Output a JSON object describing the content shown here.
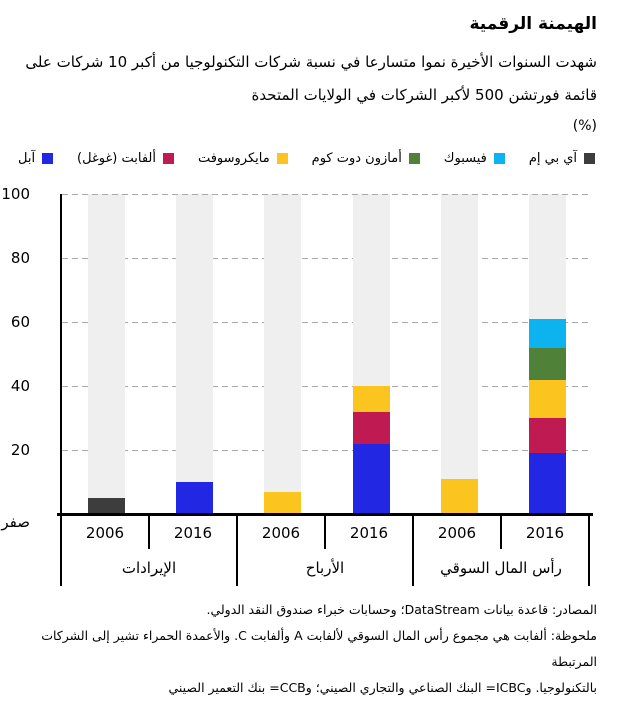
{
  "header": {
    "title": "الهيمنة الرقمية",
    "subtitle_line1": "شهدت السنوات الأخيرة نموا متسارعا في نسبة شركات التكنولوجيا من أكبر 10 شركات على",
    "subtitle_line2": "قائمة فورتشن 500 لأكبر الشركات في الولايات المتحدة",
    "unit_label": "(%)"
  },
  "legend": [
    {
      "key": "ibm",
      "label": "آي بي إم",
      "color": "#3d3d3d"
    },
    {
      "key": "facebook",
      "label": "فيسبوك",
      "color": "#0db3ef"
    },
    {
      "key": "amazon",
      "label": "أمازون دوت كوم",
      "color": "#4f8138"
    },
    {
      "key": "microsoft",
      "label": "مايكروسوفت",
      "color": "#fcc41f"
    },
    {
      "key": "alphabet-google",
      "label": "ألفابت (غوغل)",
      "color": "#c01a52"
    },
    {
      "key": "apple",
      "label": "آبل",
      "color": "#2127e3"
    }
  ],
  "chart_data": {
    "type": "bar",
    "stacked": true,
    "ylim": [
      0,
      100
    ],
    "grid": "dashed-horizontal",
    "background_columns_color": "#efefef",
    "yticks": [
      {
        "label": "100",
        "value": 100
      },
      {
        "label": "80",
        "value": 80
      },
      {
        "label": "60",
        "value": 60
      },
      {
        "label": "40",
        "value": 40
      },
      {
        "label": "20",
        "value": 20
      },
      {
        "label": "صفر",
        "value": 0
      }
    ],
    "groups": [
      {
        "label": "الإيرادات",
        "bars": [
          {
            "year": "2006",
            "segments": [
              {
                "company": "ibm",
                "value": 5
              }
            ]
          },
          {
            "year": "2016",
            "segments": [
              {
                "company": "apple",
                "value": 10
              }
            ]
          }
        ]
      },
      {
        "label": "الأرباح",
        "bars": [
          {
            "year": "2006",
            "segments": [
              {
                "company": "microsoft",
                "value": 7
              }
            ]
          },
          {
            "year": "2016",
            "segments": [
              {
                "company": "apple",
                "value": 22
              },
              {
                "company": "alphabet-google",
                "value": 10
              },
              {
                "company": "microsoft",
                "value": 8
              }
            ]
          }
        ]
      },
      {
        "label": "رأس المال السوقي",
        "bars": [
          {
            "year": "2006",
            "segments": [
              {
                "company": "microsoft",
                "value": 11
              }
            ]
          },
          {
            "year": "2016",
            "segments": [
              {
                "company": "apple",
                "value": 19
              },
              {
                "company": "alphabet-google",
                "value": 11
              },
              {
                "company": "microsoft",
                "value": 12
              },
              {
                "company": "amazon",
                "value": 10
              },
              {
                "company": "facebook",
                "value": 9
              }
            ]
          }
        ]
      }
    ]
  },
  "footnotes": {
    "line1": "المصادر: قاعدة بيانات DataStream؛ وحسابات خبراء صندوق النقد الدولي.",
    "line2": "ملحوظة: ألفابت هي مجموع رأس المال السوقي لألفابت A وألفابت C. والأعمدة الحمراء تشير إلى الشركات المرتبطة",
    "line3": "بالتكنولوجيا. وICBC= البنك الصناعي والتجاري الصيني؛ وCCB= بنك التعمير الصيني"
  }
}
